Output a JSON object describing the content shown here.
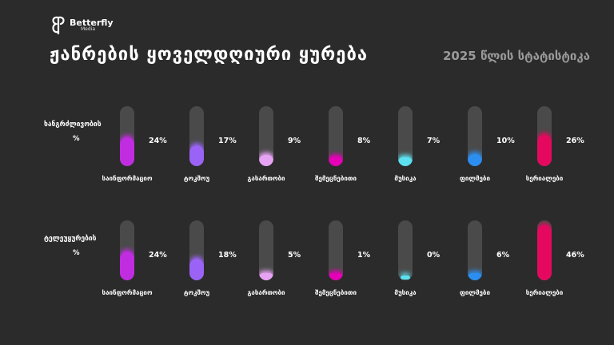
{
  "brand": {
    "name": "Betterfly",
    "sub": "Media"
  },
  "title": "ჟანრების ყოველდღიური ყურება",
  "subtitle": "2025 წლის სტატისტიკა",
  "chart_data": [
    {
      "type": "bar",
      "row_label": "ხანგრძლივობის",
      "unit": "%",
      "categories": [
        "საინფორმაციო",
        "ტოკშოუ",
        "გასართობი",
        "შემეცნებითი",
        "მუსიკა",
        "ფილმები",
        "სერიალები"
      ],
      "values": [
        24,
        17,
        9,
        8,
        7,
        10,
        26
      ],
      "value_labels": [
        "24%",
        "17%",
        "9%",
        "8%",
        "7%",
        "10%",
        "26%"
      ],
      "colors": [
        "#c02de0",
        "#9b63f5",
        "#e7a3f3",
        "#e300b6",
        "#5ce1f0",
        "#2b8ef0",
        "#e4095f"
      ]
    },
    {
      "type": "bar",
      "row_label": "ტელეუყურების",
      "unit": "%",
      "categories": [
        "საინფორმაციო",
        "ტოკშოუ",
        "გასართობი",
        "შემეცნებითი",
        "მუსიკა",
        "ფილმები",
        "სერიალები"
      ],
      "values": [
        24,
        18,
        5,
        1,
        0,
        6,
        46
      ],
      "value_labels": [
        "24%",
        "18%",
        "5%",
        "1%",
        "0%",
        "6%",
        "46%"
      ],
      "colors": [
        "#c02de0",
        "#9b63f5",
        "#e7a3f3",
        "#e300b6",
        "#5ce1f0",
        "#2b8ef0",
        "#e4095f"
      ]
    }
  ]
}
